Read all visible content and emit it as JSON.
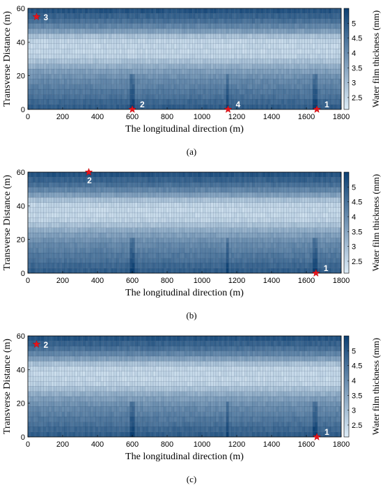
{
  "chart_data": [
    {
      "type": "heatmap",
      "panel_label": "(a)",
      "xlabel": "The longitudinal direction (m)",
      "ylabel": "Transverse  Distance (m)",
      "xlim": [
        0,
        1800
      ],
      "ylim": [
        0,
        60
      ],
      "x_ticks": [
        "0",
        "200",
        "400",
        "600",
        "800",
        "1000",
        "1200",
        "1400",
        "1600",
        "1800"
      ],
      "y_ticks": [
        "0",
        "20",
        "40",
        "60"
      ],
      "colorbar": {
        "label": "Water film thickness (mm)",
        "range": [
          2.1,
          5.5
        ],
        "ticks": [
          "2.5",
          "3",
          "3.5",
          "4",
          "4.5",
          "5"
        ],
        "colors": [
          "#deedf8",
          "#0b3f72"
        ]
      },
      "transverse_profile": {
        "y": [
          1.5,
          4.5,
          7.5,
          10.5,
          13.5,
          16.5,
          19.5,
          22.5,
          25.5,
          28.5,
          31.5,
          34.5,
          37.5,
          40.5,
          43.5,
          46.5,
          49.5,
          52.5,
          55.5,
          58.5
        ],
        "thickness": [
          4.9,
          4.7,
          4.5,
          4.35,
          4.2,
          4.05,
          3.85,
          3.6,
          3.3,
          2.9,
          2.6,
          2.5,
          2.5,
          2.55,
          2.9,
          3.6,
          4.1,
          4.5,
          4.8,
          5.1
        ]
      },
      "dark_streaks_x": [
        600,
        1150,
        1650
      ],
      "markers": [
        {
          "label": "1",
          "x": 1660,
          "y": 0
        },
        {
          "label": "2",
          "x": 600,
          "y": 0
        },
        {
          "label": "3",
          "x": 50,
          "y": 55
        },
        {
          "label": "4",
          "x": 1150,
          "y": 0
        }
      ]
    },
    {
      "type": "heatmap",
      "panel_label": "(b)",
      "xlabel": "The longitudinal direction (m)",
      "ylabel": "Transverse  Distance (m)",
      "xlim": [
        0,
        1800
      ],
      "ylim": [
        0,
        60
      ],
      "x_ticks": [
        "0",
        "200",
        "400",
        "600",
        "800",
        "1000",
        "1200",
        "1400",
        "1600",
        "1800"
      ],
      "y_ticks": [
        "0",
        "20",
        "40",
        "60"
      ],
      "colorbar": {
        "label": "Water film thickness (mm)",
        "range": [
          2.1,
          5.5
        ],
        "ticks": [
          "2.5",
          "3",
          "3.5",
          "4",
          "4.5",
          "5"
        ],
        "colors": [
          "#deedf8",
          "#0b3f72"
        ]
      },
      "transverse_profile": {
        "y": [
          1.5,
          4.5,
          7.5,
          10.5,
          13.5,
          16.5,
          19.5,
          22.5,
          25.5,
          28.5,
          31.5,
          34.5,
          37.5,
          40.5,
          43.5,
          46.5,
          49.5,
          52.5,
          55.5,
          58.5
        ],
        "thickness": [
          4.9,
          4.7,
          4.5,
          4.35,
          4.2,
          4.05,
          3.85,
          3.6,
          3.3,
          2.9,
          2.6,
          2.5,
          2.5,
          2.55,
          2.9,
          3.6,
          4.1,
          4.5,
          4.8,
          5.1
        ]
      },
      "dark_streaks_x": [
        600,
        1150,
        1650
      ],
      "markers": [
        {
          "label": "1",
          "x": 1655,
          "y": 0
        },
        {
          "label": "2",
          "x": 350,
          "y": 60
        }
      ]
    },
    {
      "type": "heatmap",
      "panel_label": "(c)",
      "xlabel": "The longitudinal direction (m)",
      "ylabel": "Transverse  Distance (m)",
      "xlim": [
        0,
        1800
      ],
      "ylim": [
        0,
        60
      ],
      "x_ticks": [
        "0",
        "200",
        "400",
        "600",
        "800",
        "1000",
        "1200",
        "1400",
        "1600",
        "1800"
      ],
      "y_ticks": [
        "0",
        "20",
        "40",
        "60"
      ],
      "colorbar": {
        "label": "Water film thickness (mm)",
        "range": [
          2.1,
          5.5
        ],
        "ticks": [
          "2.5",
          "3",
          "3.5",
          "4",
          "4.5",
          "5"
        ],
        "colors": [
          "#deedf8",
          "#0b3f72"
        ]
      },
      "transverse_profile": {
        "y": [
          1.5,
          4.5,
          7.5,
          10.5,
          13.5,
          16.5,
          19.5,
          22.5,
          25.5,
          28.5,
          31.5,
          34.5,
          37.5,
          40.5,
          43.5,
          46.5,
          49.5,
          52.5,
          55.5,
          58.5
        ],
        "thickness": [
          4.9,
          4.7,
          4.5,
          4.35,
          4.2,
          4.05,
          3.85,
          3.6,
          3.3,
          2.9,
          2.6,
          2.5,
          2.5,
          2.55,
          2.9,
          3.6,
          4.1,
          4.5,
          4.8,
          5.1
        ]
      },
      "dark_streaks_x": [
        600,
        1150,
        1650
      ],
      "markers": [
        {
          "label": "1",
          "x": 1660,
          "y": 0
        },
        {
          "label": "2",
          "x": 50,
          "y": 55
        }
      ]
    }
  ]
}
